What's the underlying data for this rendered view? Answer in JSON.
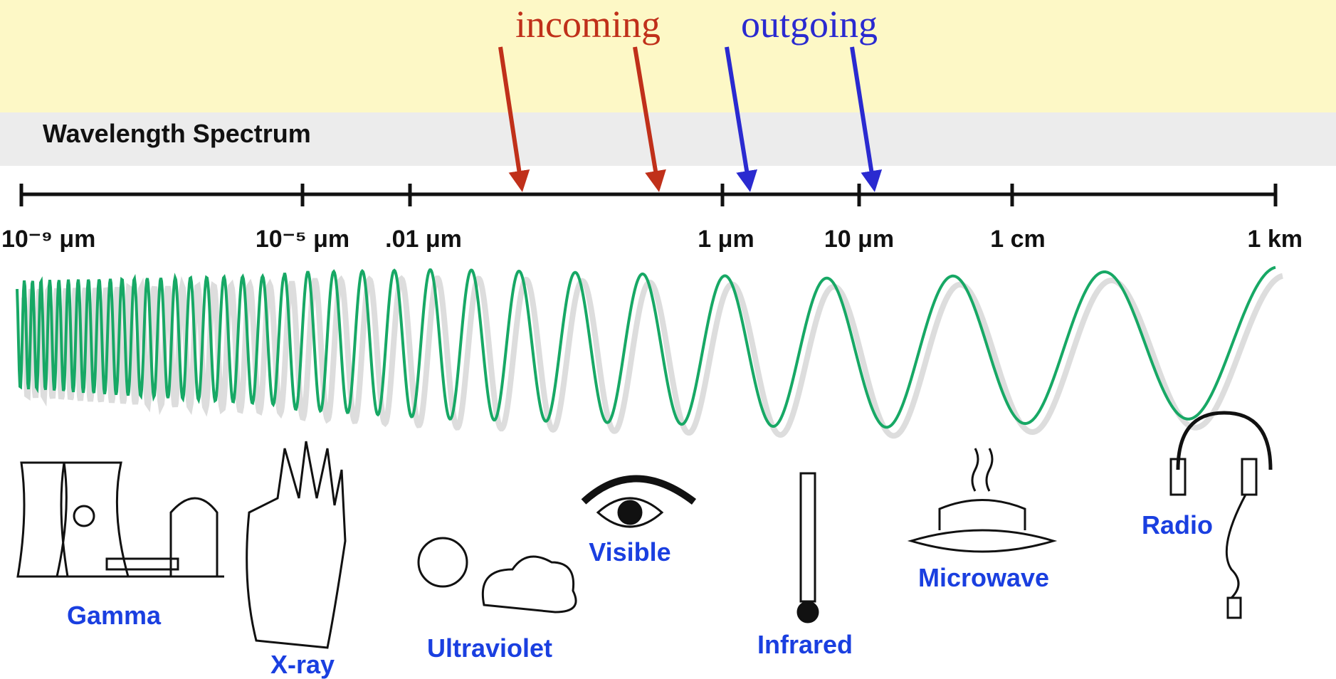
{
  "arrows": {
    "incoming": "incoming",
    "outgoing": "outgoing"
  },
  "title": "Wavelength Spectrum",
  "scale": {
    "ticks": [
      "10⁻⁹ μm",
      "10⁻⁵ μm",
      ".01 μm",
      "1 μm",
      "10 μm",
      "1 cm",
      "1 km"
    ]
  },
  "bands": [
    "Gamma",
    "X-ray",
    "Ultraviolet",
    "Visible",
    "Infrared",
    "Microwave",
    "Radio"
  ]
}
